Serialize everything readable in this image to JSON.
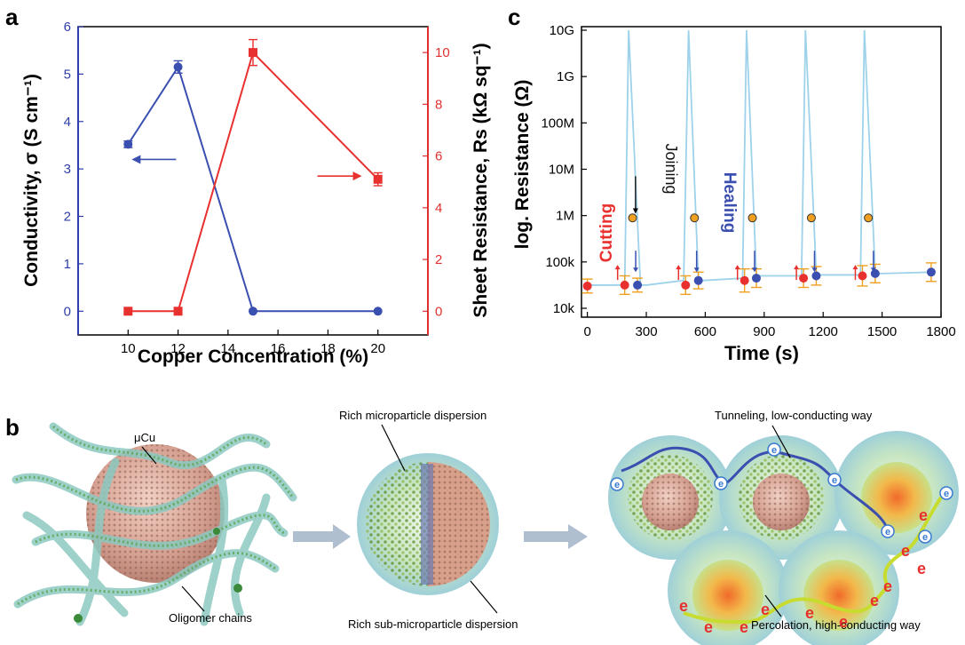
{
  "chart_data": [
    {
      "panel": "a",
      "type": "line",
      "xlabel": "Copper Concentration (%)",
      "ylabel_left": "Conductivity, σ (S cm⁻¹)",
      "ylabel_right": "Sheet Resistance, Rs (kΩ sq⁻¹)",
      "xlim": [
        8,
        22
      ],
      "xticks": [
        10,
        12,
        14,
        16,
        18,
        20
      ],
      "ylim_left": [
        -0.5,
        6
      ],
      "yticks_left": [
        0,
        1,
        2,
        3,
        4,
        5,
        6
      ],
      "ylim_right": [
        -0.917,
        11
      ],
      "yticks_right": [
        0,
        2,
        4,
        6,
        8,
        10
      ],
      "series": [
        {
          "name": "Conductivity",
          "axis": "left",
          "marker": "circle",
          "color": "#3a4fb0",
          "x": [
            10,
            12,
            15,
            20
          ],
          "y": [
            3.52,
            5.15,
            0,
            0
          ],
          "err": [
            0.07,
            0.13,
            0,
            0
          ]
        },
        {
          "name": "Sheet Resistance",
          "axis": "right",
          "marker": "square",
          "color": "#e8312f",
          "x": [
            10,
            12,
            15,
            20
          ],
          "y": [
            0,
            0,
            10.0,
            5.1
          ],
          "err": [
            0,
            0,
            0.5,
            0.25
          ]
        }
      ],
      "arrows": [
        {
          "points_to": "left",
          "at_x": 10.5,
          "at_y_left": 3.2
        },
        {
          "points_to": "right",
          "at_x": 19.0,
          "at_y_left": 2.85
        }
      ]
    },
    {
      "panel": "c",
      "type": "line",
      "xlabel": "Time (s)",
      "ylabel": "log. Resistance (Ω)",
      "xlim": [
        -30,
        1800
      ],
      "xticks": [
        0,
        300,
        600,
        900,
        1200,
        1500,
        1800
      ],
      "ytick_labels": [
        "10k",
        "100k",
        "1M",
        "10M",
        "100M",
        "1G",
        "10G"
      ],
      "ylim_log10": [
        4,
        10
      ],
      "line_color": "#9ed2ea",
      "line_x": [
        0,
        190,
        210,
        270,
        300,
        490,
        515,
        565,
        590,
        790,
        810,
        860,
        880,
        1090,
        1110,
        1165,
        1200,
        1390,
        1410,
        1465,
        1500,
        1750
      ],
      "line_log10": [
        4.5,
        4.5,
        10,
        4.5,
        4.5,
        4.6,
        10,
        4.6,
        4.6,
        4.65,
        10,
        4.7,
        4.7,
        4.7,
        10,
        4.72,
        4.72,
        4.72,
        10,
        4.75,
        4.75,
        4.78
      ],
      "red_points": {
        "x": [
          0,
          190,
          500,
          800,
          1100,
          1400
        ],
        "log10": [
          4.48,
          4.5,
          4.5,
          4.6,
          4.65,
          4.7
        ],
        "err": [
          0.15,
          0.2,
          0.2,
          0.25,
          0.2,
          0.22
        ]
      },
      "blue_points": {
        "x": [
          255,
          565,
          860,
          1165,
          1465,
          1750
        ],
        "log10": [
          4.5,
          4.6,
          4.65,
          4.7,
          4.75,
          4.78
        ],
        "err": [
          0.15,
          0.18,
          0.2,
          0.2,
          0.2,
          0.2
        ]
      },
      "orange_points": {
        "x": [
          230,
          545,
          840,
          1140,
          1430
        ],
        "log10": [
          5.95,
          5.95,
          5.95,
          5.95,
          5.95
        ]
      },
      "annotations": {
        "cutting": "Cutting",
        "joining": "Joining",
        "healing": "Healing"
      }
    }
  ],
  "panel_labels": {
    "a": "a",
    "b": "b",
    "c": "c"
  },
  "schematic": {
    "ucu": "μCu",
    "oligomer": "Oligomer chains",
    "rich_micro": "Rich microparticle dispersion",
    "rich_sub": "Rich sub-microparticle dispersion",
    "tunneling": "Tunneling, low-conducting way",
    "percolation": "Percolation, high-conducting way",
    "electron": "e"
  },
  "colors": {
    "blue": "#3a4fb0",
    "red": "#e8312f",
    "cyan": "#9ed2ea",
    "orange": "#f0a020",
    "axis_blue": "#2d3fa8",
    "axis_red": "#e03030"
  }
}
